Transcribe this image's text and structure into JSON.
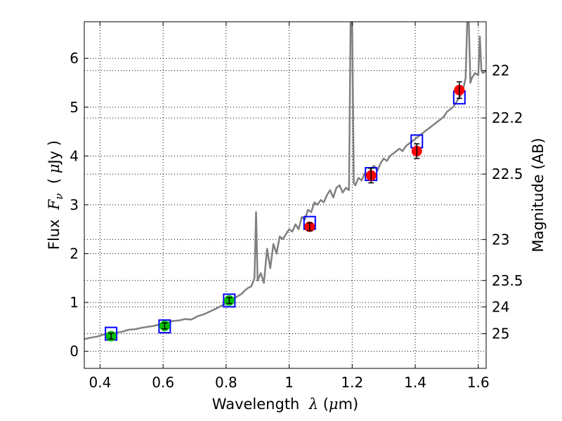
{
  "chart_data": {
    "type": "scatter",
    "title": "",
    "xlabel": "Wavelength  λ (μm)",
    "xlabel_parts": {
      "prefix": "Wavelength  ",
      "lambda": "λ",
      "open": " (",
      "mu": "μ",
      "unit": "m)"
    },
    "ylabel": "Flux  Fν  ( μJy )",
    "ylabel_parts": {
      "prefix": "Flux  ",
      "F": "F",
      "nu": "ν",
      "mid": "  ( ",
      "mu": "μ",
      "suffix": "Jy )"
    },
    "y2label": "Magnitude (AB)",
    "xlim": [
      0.35,
      1.625
    ],
    "ylim": [
      -0.35,
      6.75
    ],
    "grid": true,
    "grid_style": "dotted",
    "xticks": [
      0.4,
      0.6,
      0.8,
      1.0,
      1.2,
      1.4,
      1.6
    ],
    "xtick_labels": [
      "0.4",
      "0.6",
      "0.8",
      "1",
      "1.2",
      "1.4",
      "1.6"
    ],
    "yticks": [
      0,
      1,
      2,
      3,
      4,
      5,
      6
    ],
    "ytick_labels": [
      "0",
      "1",
      "2",
      "3",
      "4",
      "5",
      "6"
    ],
    "y2ticks": [
      {
        "flux": 5.75,
        "label": "22"
      },
      {
        "flux": 4.78,
        "label": "22.2"
      },
      {
        "flux": 3.63,
        "label": "22.5"
      },
      {
        "flux": 2.29,
        "label": "23"
      },
      {
        "flux": 1.45,
        "label": "23.5"
      },
      {
        "flux": 0.91,
        "label": "24"
      },
      {
        "flux": 0.36,
        "label": "25"
      }
    ],
    "series": [
      {
        "kind": "line",
        "color": "#808080",
        "x": [
          0.35,
          0.37,
          0.39,
          0.41,
          0.43,
          0.45,
          0.47,
          0.49,
          0.51,
          0.53,
          0.55,
          0.57,
          0.59,
          0.61,
          0.63,
          0.65,
          0.67,
          0.69,
          0.71,
          0.73,
          0.75,
          0.77,
          0.79,
          0.81,
          0.83,
          0.85,
          0.86,
          0.87,
          0.88,
          0.89,
          0.895,
          0.9,
          0.91,
          0.92,
          0.93,
          0.94,
          0.95,
          0.96,
          0.97,
          0.98,
          0.99,
          1.0,
          1.01,
          1.02,
          1.03,
          1.04,
          1.05,
          1.06,
          1.07,
          1.08,
          1.09,
          1.1,
          1.11,
          1.12,
          1.13,
          1.14,
          1.15,
          1.16,
          1.17,
          1.18,
          1.19,
          1.195,
          1.2,
          1.205,
          1.21,
          1.22,
          1.23,
          1.24,
          1.25,
          1.26,
          1.27,
          1.28,
          1.29,
          1.3,
          1.31,
          1.32,
          1.33,
          1.34,
          1.35,
          1.36,
          1.37,
          1.38,
          1.39,
          1.4,
          1.41,
          1.42,
          1.43,
          1.44,
          1.45,
          1.46,
          1.47,
          1.48,
          1.49,
          1.5,
          1.51,
          1.52,
          1.53,
          1.54,
          1.55,
          1.56,
          1.565,
          1.57,
          1.575,
          1.58,
          1.59,
          1.6,
          1.605,
          1.61,
          1.615,
          1.625
        ],
        "y": [
          0.25,
          0.28,
          0.3,
          0.34,
          0.37,
          0.38,
          0.4,
          0.44,
          0.45,
          0.48,
          0.5,
          0.52,
          0.55,
          0.58,
          0.62,
          0.63,
          0.66,
          0.65,
          0.72,
          0.76,
          0.82,
          0.88,
          0.95,
          1.02,
          1.1,
          1.18,
          1.25,
          1.3,
          1.33,
          1.5,
          2.85,
          1.45,
          1.6,
          1.4,
          2.1,
          1.7,
          2.2,
          2.0,
          2.35,
          2.3,
          2.4,
          2.5,
          2.45,
          2.6,
          2.5,
          2.75,
          2.7,
          2.9,
          2.85,
          3.05,
          3.0,
          3.1,
          3.05,
          3.2,
          3.3,
          3.15,
          3.35,
          3.4,
          3.25,
          3.35,
          3.3,
          6.75,
          6.75,
          3.45,
          3.4,
          3.55,
          3.5,
          3.65,
          3.6,
          3.75,
          3.8,
          3.7,
          3.85,
          3.95,
          3.9,
          4.0,
          4.05,
          4.1,
          4.15,
          4.1,
          4.2,
          4.25,
          4.3,
          4.35,
          4.4,
          4.45,
          4.5,
          4.55,
          4.6,
          4.65,
          4.7,
          4.75,
          4.8,
          4.9,
          4.95,
          5.0,
          5.1,
          5.2,
          5.3,
          5.6,
          6.75,
          6.75,
          5.5,
          5.6,
          5.7,
          5.65,
          6.45,
          5.75,
          5.7,
          5.75
        ]
      },
      {
        "kind": "model-points",
        "marker": "open-square",
        "color": "#0000ff",
        "x": [
          0.435,
          0.605,
          0.81,
          1.065,
          1.26,
          1.405,
          1.54
        ],
        "y": [
          0.36,
          0.51,
          1.04,
          2.63,
          3.63,
          4.3,
          5.2
        ]
      },
      {
        "kind": "observed-points",
        "marker": "circle",
        "color": "#00c000",
        "x": [
          0.435,
          0.605,
          0.81
        ],
        "y": [
          0.31,
          0.52,
          1.04
        ],
        "err": [
          0.06,
          0.06,
          0.06
        ]
      },
      {
        "kind": "observed-points",
        "marker": "circle",
        "color": "#ff0000",
        "x": [
          1.065,
          1.26,
          1.405,
          1.54
        ],
        "y": [
          2.55,
          3.6,
          4.1,
          5.35
        ],
        "err": [
          0.08,
          0.15,
          0.15,
          0.17
        ]
      }
    ]
  }
}
